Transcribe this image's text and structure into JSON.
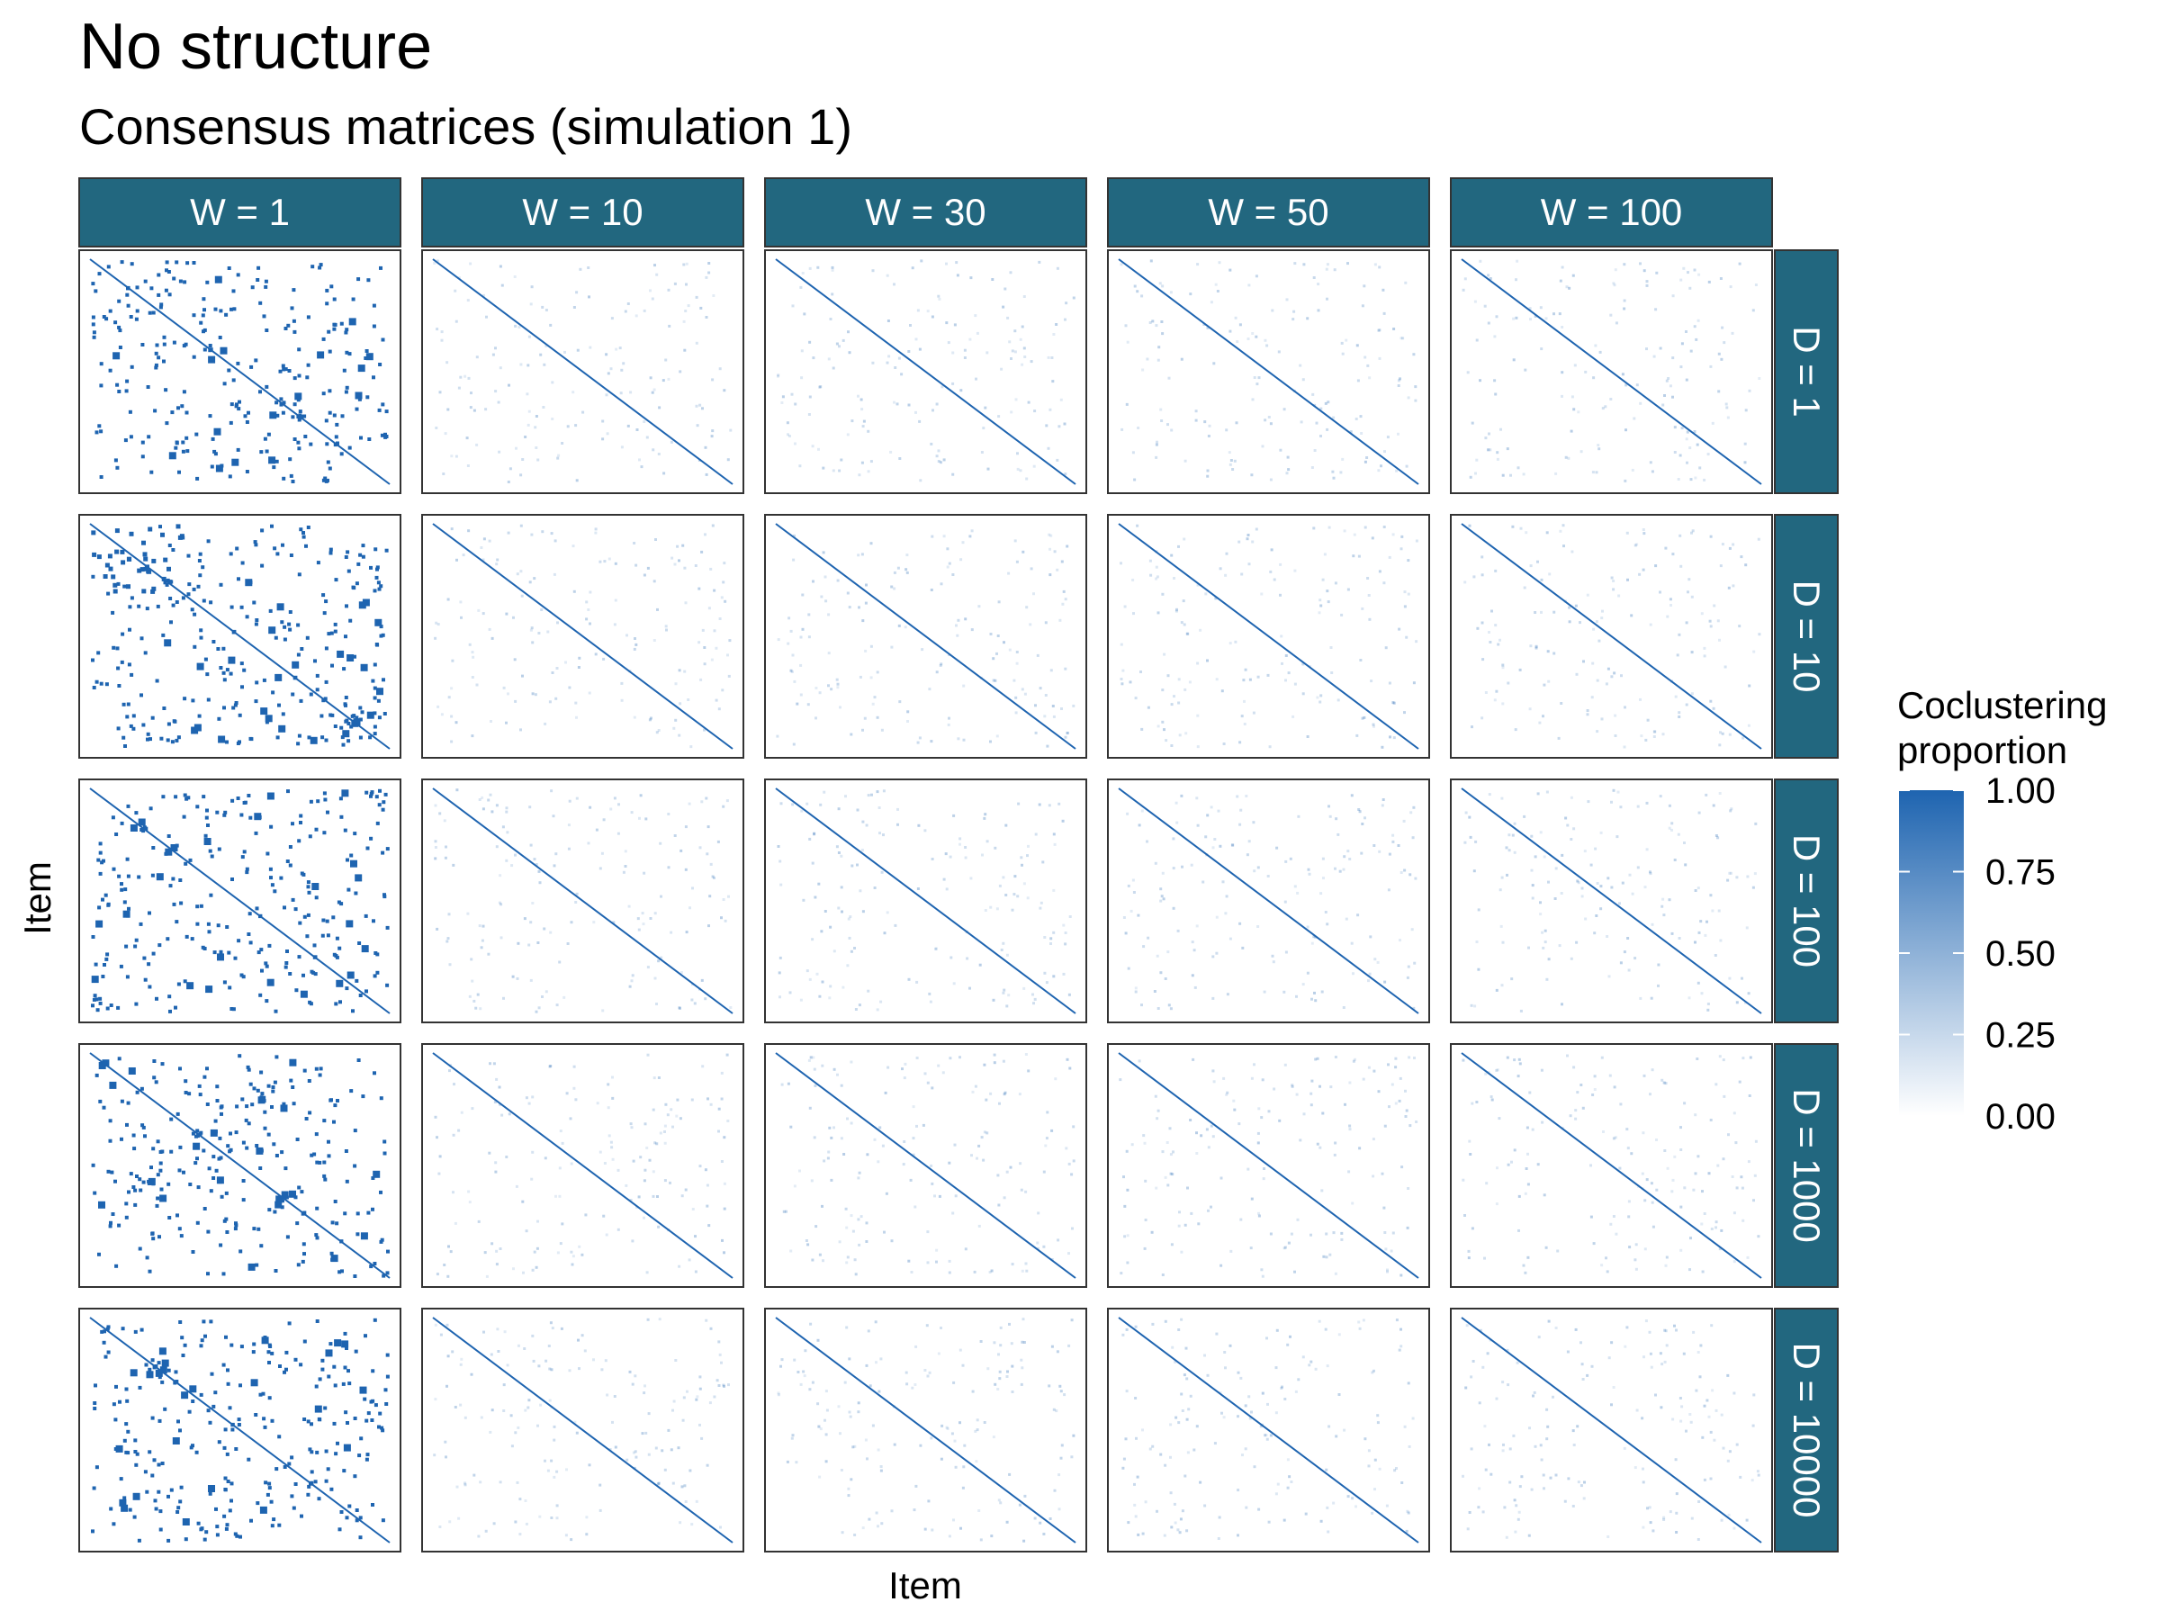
{
  "title": "No structure",
  "subtitle": "Consensus matrices (simulation 1)",
  "colors": {
    "strip_background": "#22677F",
    "strip_text": "#FFFFFF",
    "fill_low": "#FFFFFF",
    "fill_high": "#1E64B0",
    "panel_border": "#333333"
  },
  "chart_data": {
    "type": "heatmap",
    "xlabel": "Item",
    "ylabel": "Item",
    "column_facets": [
      "W = 1",
      "W = 10",
      "W = 30",
      "W = 50",
      "W = 100"
    ],
    "row_facets": [
      "D = 1",
      "D = 10",
      "D = 100",
      "D = 1000",
      "D = 10000"
    ],
    "fill_scale": {
      "title_lines": [
        "Coclustering",
        "proportion"
      ],
      "limits": [
        0,
        1
      ],
      "breaks": [
        1.0,
        0.75,
        0.5,
        0.25,
        0.0
      ],
      "break_labels": [
        "1.00",
        "0.75",
        "0.50",
        "0.25",
        "0.00"
      ]
    },
    "panel_description": "Each panel is a consensus matrix; diagonal equals 1.00. With W = 1 off-diagonal entries are sparse 0/1 blocks; with W >= 10 off-diagonal entries are low (about 0.00-0.25)."
  }
}
